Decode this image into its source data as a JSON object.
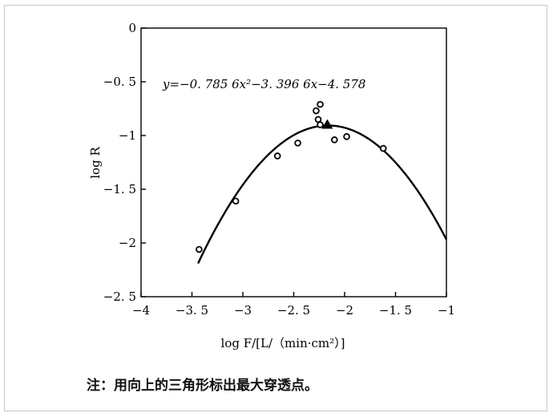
{
  "chart_data": {
    "type": "scatter",
    "title": "",
    "equation": "y=−0. 785 6x²−3. 396 6x−4. 578",
    "xlabel": "log F/[L/（min·cm²）]",
    "ylabel": "log R",
    "xlim": [
      -4,
      -1
    ],
    "ylim": [
      -2.5,
      0
    ],
    "x_ticks": [
      "−4",
      "−3. 5",
      "−3",
      "−2. 5",
      "−2",
      "−1. 5",
      "−1"
    ],
    "x_tick_values": [
      -4,
      -3.5,
      -3,
      -2.5,
      -2,
      -1.5,
      -1
    ],
    "y_ticks": [
      "0",
      "−0. 5",
      "−1",
      "−1. 5",
      "−2",
      "−2. 5"
    ],
    "y_tick_values": [
      0,
      -0.5,
      -1,
      -1.5,
      -2,
      -2.5
    ],
    "grid": false,
    "fit": {
      "a": -0.7856,
      "b": -3.3966,
      "c": -4.578,
      "x_from": -3.44,
      "x_to": -1.0
    },
    "series": [
      {
        "marker": "circle",
        "points": [
          [
            -3.43,
            -2.06
          ],
          [
            -3.07,
            -1.61
          ],
          [
            -2.66,
            -1.19
          ],
          [
            -2.46,
            -1.07
          ],
          [
            -2.28,
            -0.77
          ],
          [
            -2.26,
            -0.85
          ],
          [
            -2.24,
            -0.71
          ],
          [
            -2.24,
            -0.9
          ],
          [
            -2.1,
            -1.04
          ],
          [
            -1.98,
            -1.01
          ],
          [
            -1.62,
            -1.12
          ]
        ]
      },
      {
        "marker": "triangle",
        "points": [
          [
            -2.17,
            -0.9
          ]
        ]
      }
    ]
  },
  "note": "注：用向上的三角形标出最大穿透点。"
}
